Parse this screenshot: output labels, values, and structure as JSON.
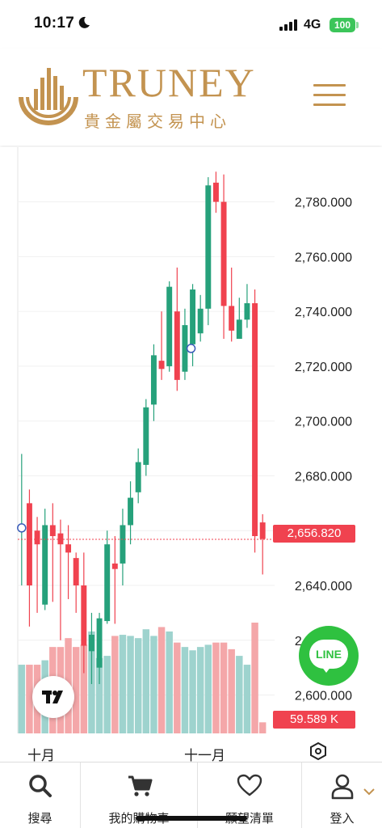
{
  "status_bar": {
    "time": "10:17",
    "network": "4G",
    "battery": "100"
  },
  "header": {
    "brand": "TRUNEY",
    "subtitle": "貴金屬交易中心",
    "menu_icon": "hamburger-icon"
  },
  "chart": {
    "current_price_label": "2,656.820",
    "volume_label": "59.589 K",
    "x_ticks": [
      "十月",
      "十一月"
    ],
    "settings_icon": "hexagon-settings-icon",
    "colors": {
      "up": "#26a17b",
      "down": "#f0424f",
      "up_vol": "#9ed3ce",
      "down_vol": "#f4a7a9",
      "accent": "#c39350"
    }
  },
  "chart_data": {
    "type": "candlestick",
    "y_tick_labels": [
      "2,780.000",
      "2,760.000",
      "2,740.000",
      "2,720.000",
      "2,700.000",
      "2,680.000",
      "2,660.000",
      "2,640.000",
      "2,620.000",
      "2,600.000"
    ],
    "y_ticks": [
      2780,
      2760,
      2740,
      2720,
      2700,
      2680,
      2660,
      2640,
      2620,
      2600
    ],
    "ylim": [
      2586,
      2797
    ],
    "last_price": 2656.82,
    "candles": [
      {
        "o": 2660,
        "c": 2660,
        "h": 2688,
        "l": 2640
      },
      {
        "o": 2670,
        "c": 2640,
        "h": 2675,
        "l": 2625
      },
      {
        "o": 2660,
        "c": 2655,
        "h": 2665,
        "l": 2630
      },
      {
        "o": 2633,
        "c": 2662,
        "h": 2668,
        "l": 2631
      },
      {
        "o": 2662,
        "c": 2658,
        "h": 2670,
        "l": 2634
      },
      {
        "o": 2659,
        "c": 2655,
        "h": 2664,
        "l": 2620
      },
      {
        "o": 2655,
        "c": 2652,
        "h": 2662,
        "l": 2635
      },
      {
        "o": 2650,
        "c": 2640,
        "h": 2652,
        "l": 2630
      },
      {
        "o": 2640,
        "c": 2618,
        "h": 2652,
        "l": 2608
      },
      {
        "o": 2616,
        "c": 2622,
        "h": 2630,
        "l": 2604
      },
      {
        "o": 2610,
        "c": 2628,
        "h": 2630,
        "l": 2604
      },
      {
        "o": 2627,
        "c": 2655,
        "h": 2660,
        "l": 2626
      },
      {
        "o": 2648,
        "c": 2646,
        "h": 2658,
        "l": 2626
      },
      {
        "o": 2648,
        "c": 2662,
        "h": 2668,
        "l": 2640
      },
      {
        "o": 2662,
        "c": 2672,
        "h": 2678,
        "l": 2655
      },
      {
        "o": 2674,
        "c": 2685,
        "h": 2690,
        "l": 2670
      },
      {
        "o": 2684,
        "c": 2705,
        "h": 2708,
        "l": 2680
      },
      {
        "o": 2706,
        "c": 2724,
        "h": 2728,
        "l": 2700
      },
      {
        "o": 2722,
        "c": 2719,
        "h": 2740,
        "l": 2715
      },
      {
        "o": 2720,
        "c": 2749,
        "h": 2751,
        "l": 2718
      },
      {
        "o": 2740,
        "c": 2715,
        "h": 2756,
        "l": 2711
      },
      {
        "o": 2718,
        "c": 2735,
        "h": 2741,
        "l": 2715
      },
      {
        "o": 2728,
        "c": 2748,
        "h": 2750,
        "l": 2720
      },
      {
        "o": 2732,
        "c": 2741,
        "h": 2746,
        "l": 2729
      },
      {
        "o": 2741,
        "c": 2786,
        "h": 2789,
        "l": 2735
      },
      {
        "o": 2787,
        "c": 2780,
        "h": 2791,
        "l": 2776
      },
      {
        "o": 2780,
        "c": 2742,
        "h": 2790,
        "l": 2730
      },
      {
        "o": 2742,
        "c": 2733,
        "h": 2756,
        "l": 2729
      },
      {
        "o": 2730,
        "c": 2737,
        "h": 2745,
        "l": 2730
      },
      {
        "o": 2737,
        "c": 2743,
        "h": 2750,
        "l": 2734
      },
      {
        "o": 2743,
        "c": 2658,
        "h": 2748,
        "l": 2652
      },
      {
        "o": 2663,
        "c": 2657,
        "h": 2666,
        "l": 2644
      }
    ],
    "volumes": [
      0.62,
      0.62,
      0.62,
      0.66,
      0.78,
      0.78,
      0.86,
      0.78,
      0.8,
      0.92,
      0.68,
      0.7,
      0.88,
      0.89,
      0.88,
      0.86,
      0.94,
      0.88,
      0.96,
      0.92,
      0.82,
      0.78,
      0.75,
      0.78,
      0.8,
      0.82,
      0.82,
      0.76,
      0.7,
      0.62,
      1.0,
      0.1
    ]
  },
  "nav": {
    "items": [
      {
        "label": "搜尋",
        "icon": "search-icon"
      },
      {
        "label": "我的購物車",
        "icon": "cart-icon"
      },
      {
        "label": "願望清單",
        "icon": "heart-icon"
      },
      {
        "label": "登入",
        "icon": "user-icon"
      }
    ]
  },
  "line": {
    "label": "LINE"
  }
}
